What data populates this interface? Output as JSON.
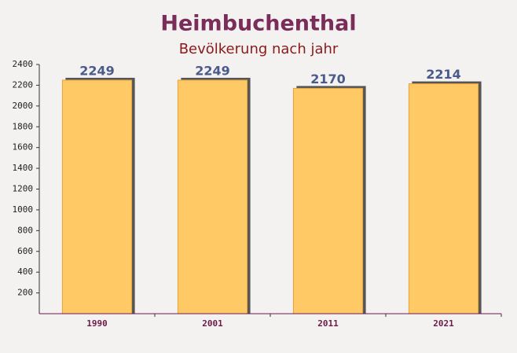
{
  "chart_data": {
    "type": "bar",
    "title": "Heimbuchenthal",
    "subtitle": "Bevölkerung nach jahr",
    "categories": [
      "1990",
      "2001",
      "2011",
      "2021"
    ],
    "values": [
      2249,
      2249,
      2170,
      2214
    ],
    "color": "#ffc966",
    "ylim": [
      0,
      2400
    ],
    "yticks": [
      200,
      400,
      600,
      800,
      1000,
      1200,
      1400,
      1600,
      1800,
      2000,
      2200,
      2400
    ]
  }
}
